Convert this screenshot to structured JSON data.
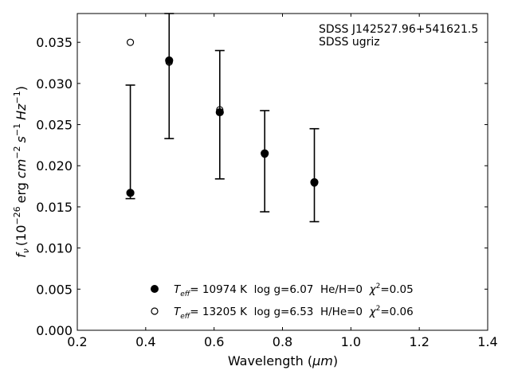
{
  "chart_data": {
    "type": "scatter",
    "xlabel_main": "Wavelength (",
    "xlabel_unit": "μm",
    "xlabel_close": ")",
    "ylabel": {
      "f": "f",
      "nu": "ν",
      "open": "(10",
      "exp1": "−26",
      "erg": "erg",
      "cm": "cm",
      "exp2": "−2",
      "s": "s",
      "exp3": "−1",
      "hz": "Hz",
      "exp4": "−1",
      "close": ")"
    },
    "xlim": [
      0.2,
      1.4
    ],
    "ylim": [
      0.0,
      0.0385
    ],
    "xticks": [
      "0.2",
      "0.4",
      "0.6",
      "0.8",
      "1.0",
      "1.2",
      "1.4"
    ],
    "yticks": [
      "0.000",
      "0.005",
      "0.010",
      "0.015",
      "0.020",
      "0.025",
      "0.030",
      "0.035"
    ],
    "annotations": [
      "SDSS J142527.96+541621.5",
      "SDSS ugriz"
    ],
    "observed": {
      "x": [
        0.3551,
        0.4686,
        0.6166,
        0.748,
        0.8932
      ],
      "y": [
        0.0167,
        0.0328,
        0.0265,
        0.0215,
        0.0179
      ],
      "err_low": [
        0.016,
        0.0233,
        0.0184,
        0.0144,
        0.0132
      ],
      "err_high": [
        0.0298,
        0.0385,
        0.034,
        0.0267,
        0.0245
      ]
    },
    "series": [
      {
        "name": "Teff= 10974 K log g=6.07 He/H=0 χ2=0.05",
        "marker": "filled",
        "x": [
          0.3551,
          0.4686,
          0.6166,
          0.748,
          0.8932
        ],
        "y": [
          0.0167,
          0.0328,
          0.0265,
          0.0215,
          0.018
        ]
      },
      {
        "name": "Teff= 13205 K log g=6.53 H/He=0 χ2=0.06",
        "marker": "open",
        "x": [
          0.3551,
          0.4686,
          0.6166,
          0.748,
          0.8932
        ],
        "y": [
          0.035,
          0.0326,
          0.0268,
          0.0214,
          0.0179
        ]
      }
    ],
    "legend": [
      {
        "T": "T",
        "eff": "eff",
        "rest": "= 10974 K  log g=6.07  He/H=0  ",
        "chi": "χ",
        "sq": "2",
        "val": "=0.05"
      },
      {
        "T": "T",
        "eff": "eff",
        "rest": "= 13205 K  log g=6.53  H/He=0  ",
        "chi": "χ",
        "sq": "2",
        "val": "=0.06"
      }
    ],
    "legend_position": "bottom-center",
    "grid": false
  }
}
